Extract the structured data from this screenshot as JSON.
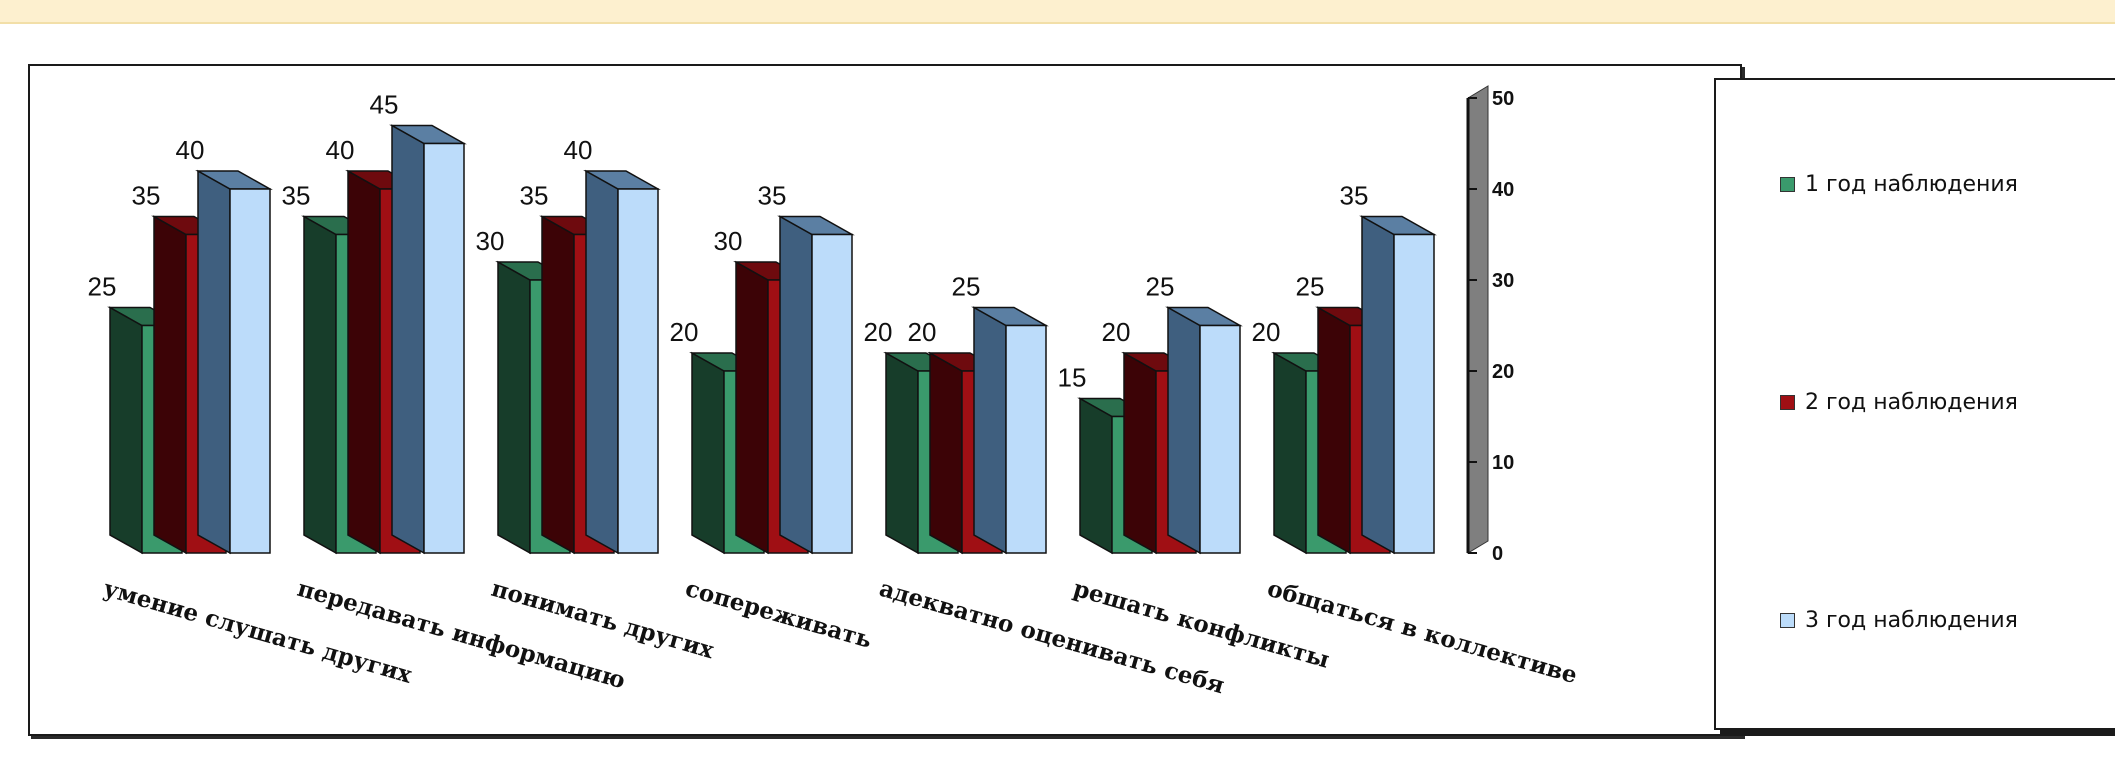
{
  "chart_data": {
    "type": "bar",
    "title": "",
    "xlabel": "",
    "ylabel": "",
    "ylim": [
      0,
      50
    ],
    "yticks": [
      "0",
      "10",
      "20",
      "30",
      "40",
      "50"
    ],
    "categories": [
      "умение слушать других",
      "передавать информацию",
      "понимать других",
      "сопереживать",
      "адекватно оценивать себя",
      "решать конфликты",
      "общаться в коллективе"
    ],
    "series": [
      {
        "name": "1 год наблюдения",
        "values": [
          25,
          35,
          30,
          20,
          20,
          15,
          20
        ],
        "color": "#3a9a6c",
        "side": "#173d2a",
        "top": "#2a6e4d"
      },
      {
        "name": "2 год наблюдения",
        "values": [
          35,
          40,
          35,
          30,
          20,
          20,
          25
        ],
        "color": "#a00f14",
        "side": "#3c0306",
        "top": "#6e0a0e"
      },
      {
        "name": "3 год наблюдения",
        "values": [
          40,
          45,
          40,
          35,
          25,
          25,
          35
        ],
        "color": "#bcdcfa",
        "side": "#3f5f7f",
        "top": "#5b7fa3"
      }
    ],
    "legend_position": "right",
    "grid": false
  }
}
